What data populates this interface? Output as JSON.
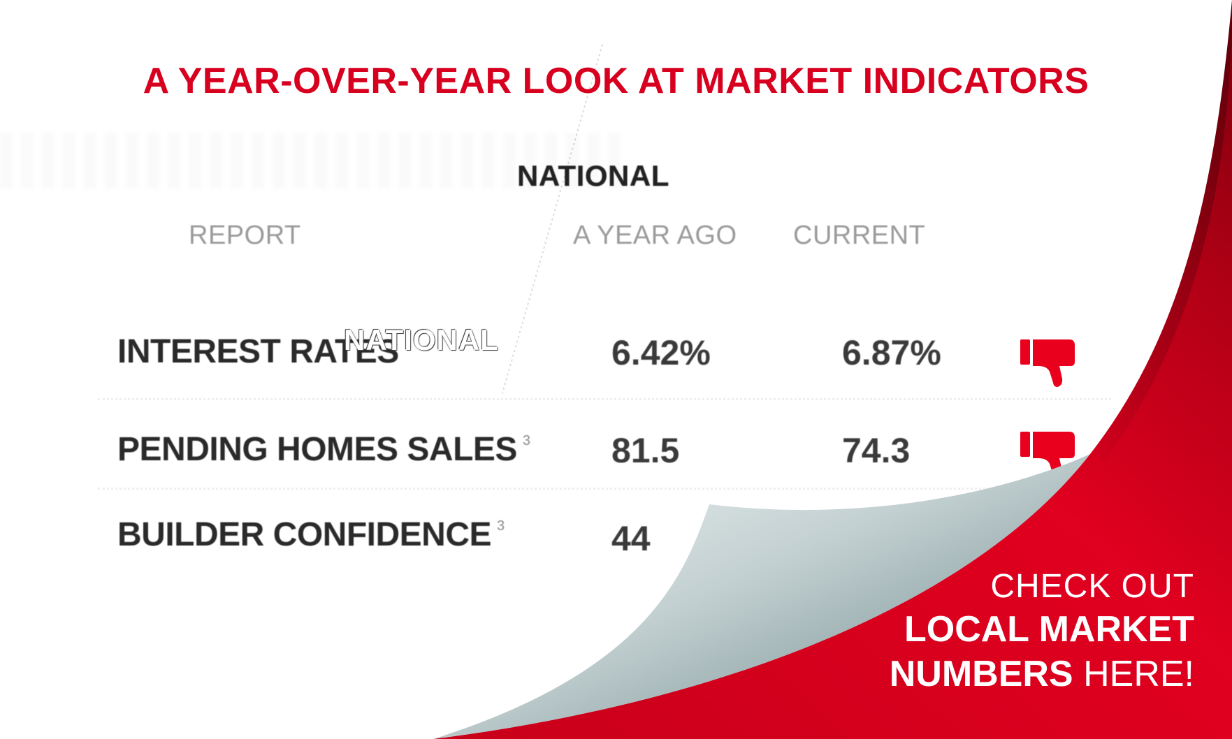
{
  "title": "A YEAR-OVER-YEAR LOOK AT MARKET INDICATORS",
  "section": "NATIONAL",
  "columns": {
    "report": "REPORT",
    "year_ago": "A YEAR AGO",
    "current": "CURRENT"
  },
  "overlay_text": "NATIONAL",
  "rows": [
    {
      "label": "INTEREST RATES",
      "footnote": "",
      "year_ago": "6.42%",
      "current": "6.87%",
      "trend_icon": "thumbs-down-icon"
    },
    {
      "label": "PENDING HOMES SALES",
      "footnote": "3",
      "year_ago": "81.5",
      "current": "74.3",
      "trend_icon": "thumbs-down-icon"
    },
    {
      "label": "BUILDER CONFIDENCE",
      "footnote": "3",
      "year_ago": "44",
      "current": "",
      "trend_icon": ""
    }
  ],
  "cta": {
    "line1": "CHECK OUT",
    "line2": "LOCAL MARKET",
    "line3_bold": "NUMBERS",
    "line3_rest": "HERE!"
  },
  "colors": {
    "accent": "#d8001f",
    "dark_red": "#a00012",
    "text": "#2a2a2a",
    "muted": "#9a9a9a"
  }
}
